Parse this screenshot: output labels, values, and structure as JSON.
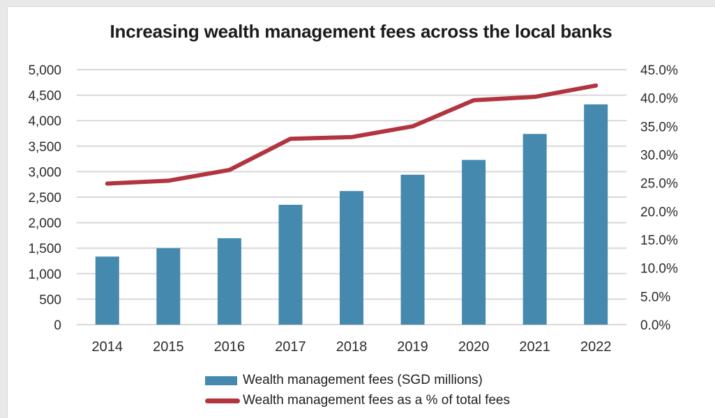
{
  "title": "Increasing wealth management fees across the local banks",
  "colors": {
    "bar": "#4689ae",
    "line": "#b2343f",
    "grid": "#d8d8d8",
    "title_text": "#1b1b1b",
    "tick_text": "#2b2b2b",
    "legend_text": "#1f1f1f",
    "card_bg": "#ffffff",
    "page_bg": "#e8e8e8",
    "card_border": "#d9d9d9"
  },
  "chart_data": {
    "type": "bar",
    "title": "Increasing wealth management fees across the local banks",
    "categories": [
      "2014",
      "2015",
      "2016",
      "2017",
      "2018",
      "2019",
      "2020",
      "2021",
      "2022"
    ],
    "series": [
      {
        "name": "Wealth management fees (SGD millions)",
        "type": "bar",
        "axis": "left",
        "color": "#4689ae",
        "values": [
          1335,
          1500,
          1695,
          2350,
          2620,
          2940,
          3230,
          3740,
          4320
        ]
      },
      {
        "name": "Wealth management fees as a % of total fees",
        "type": "line",
        "axis": "right",
        "color": "#b2343f",
        "values": [
          24.9,
          25.4,
          27.3,
          32.8,
          33.1,
          35.0,
          39.6,
          40.2,
          42.2
        ]
      }
    ],
    "left_axis": {
      "min": 0,
      "max": 5000,
      "step": 500,
      "tick_labels": [
        "0",
        "500",
        "1,000",
        "1,500",
        "2,000",
        "2,500",
        "3,000",
        "3,500",
        "4,000",
        "4,500",
        "5,000"
      ]
    },
    "right_axis": {
      "min": 0,
      "max": 45,
      "step": 5,
      "tick_labels": [
        "0.0%",
        "5.0%",
        "10.0%",
        "15.0%",
        "20.0%",
        "25.0%",
        "30.0%",
        "35.0%",
        "40.0%",
        "45.0%"
      ]
    },
    "grid": true,
    "legend_position": "bottom"
  }
}
